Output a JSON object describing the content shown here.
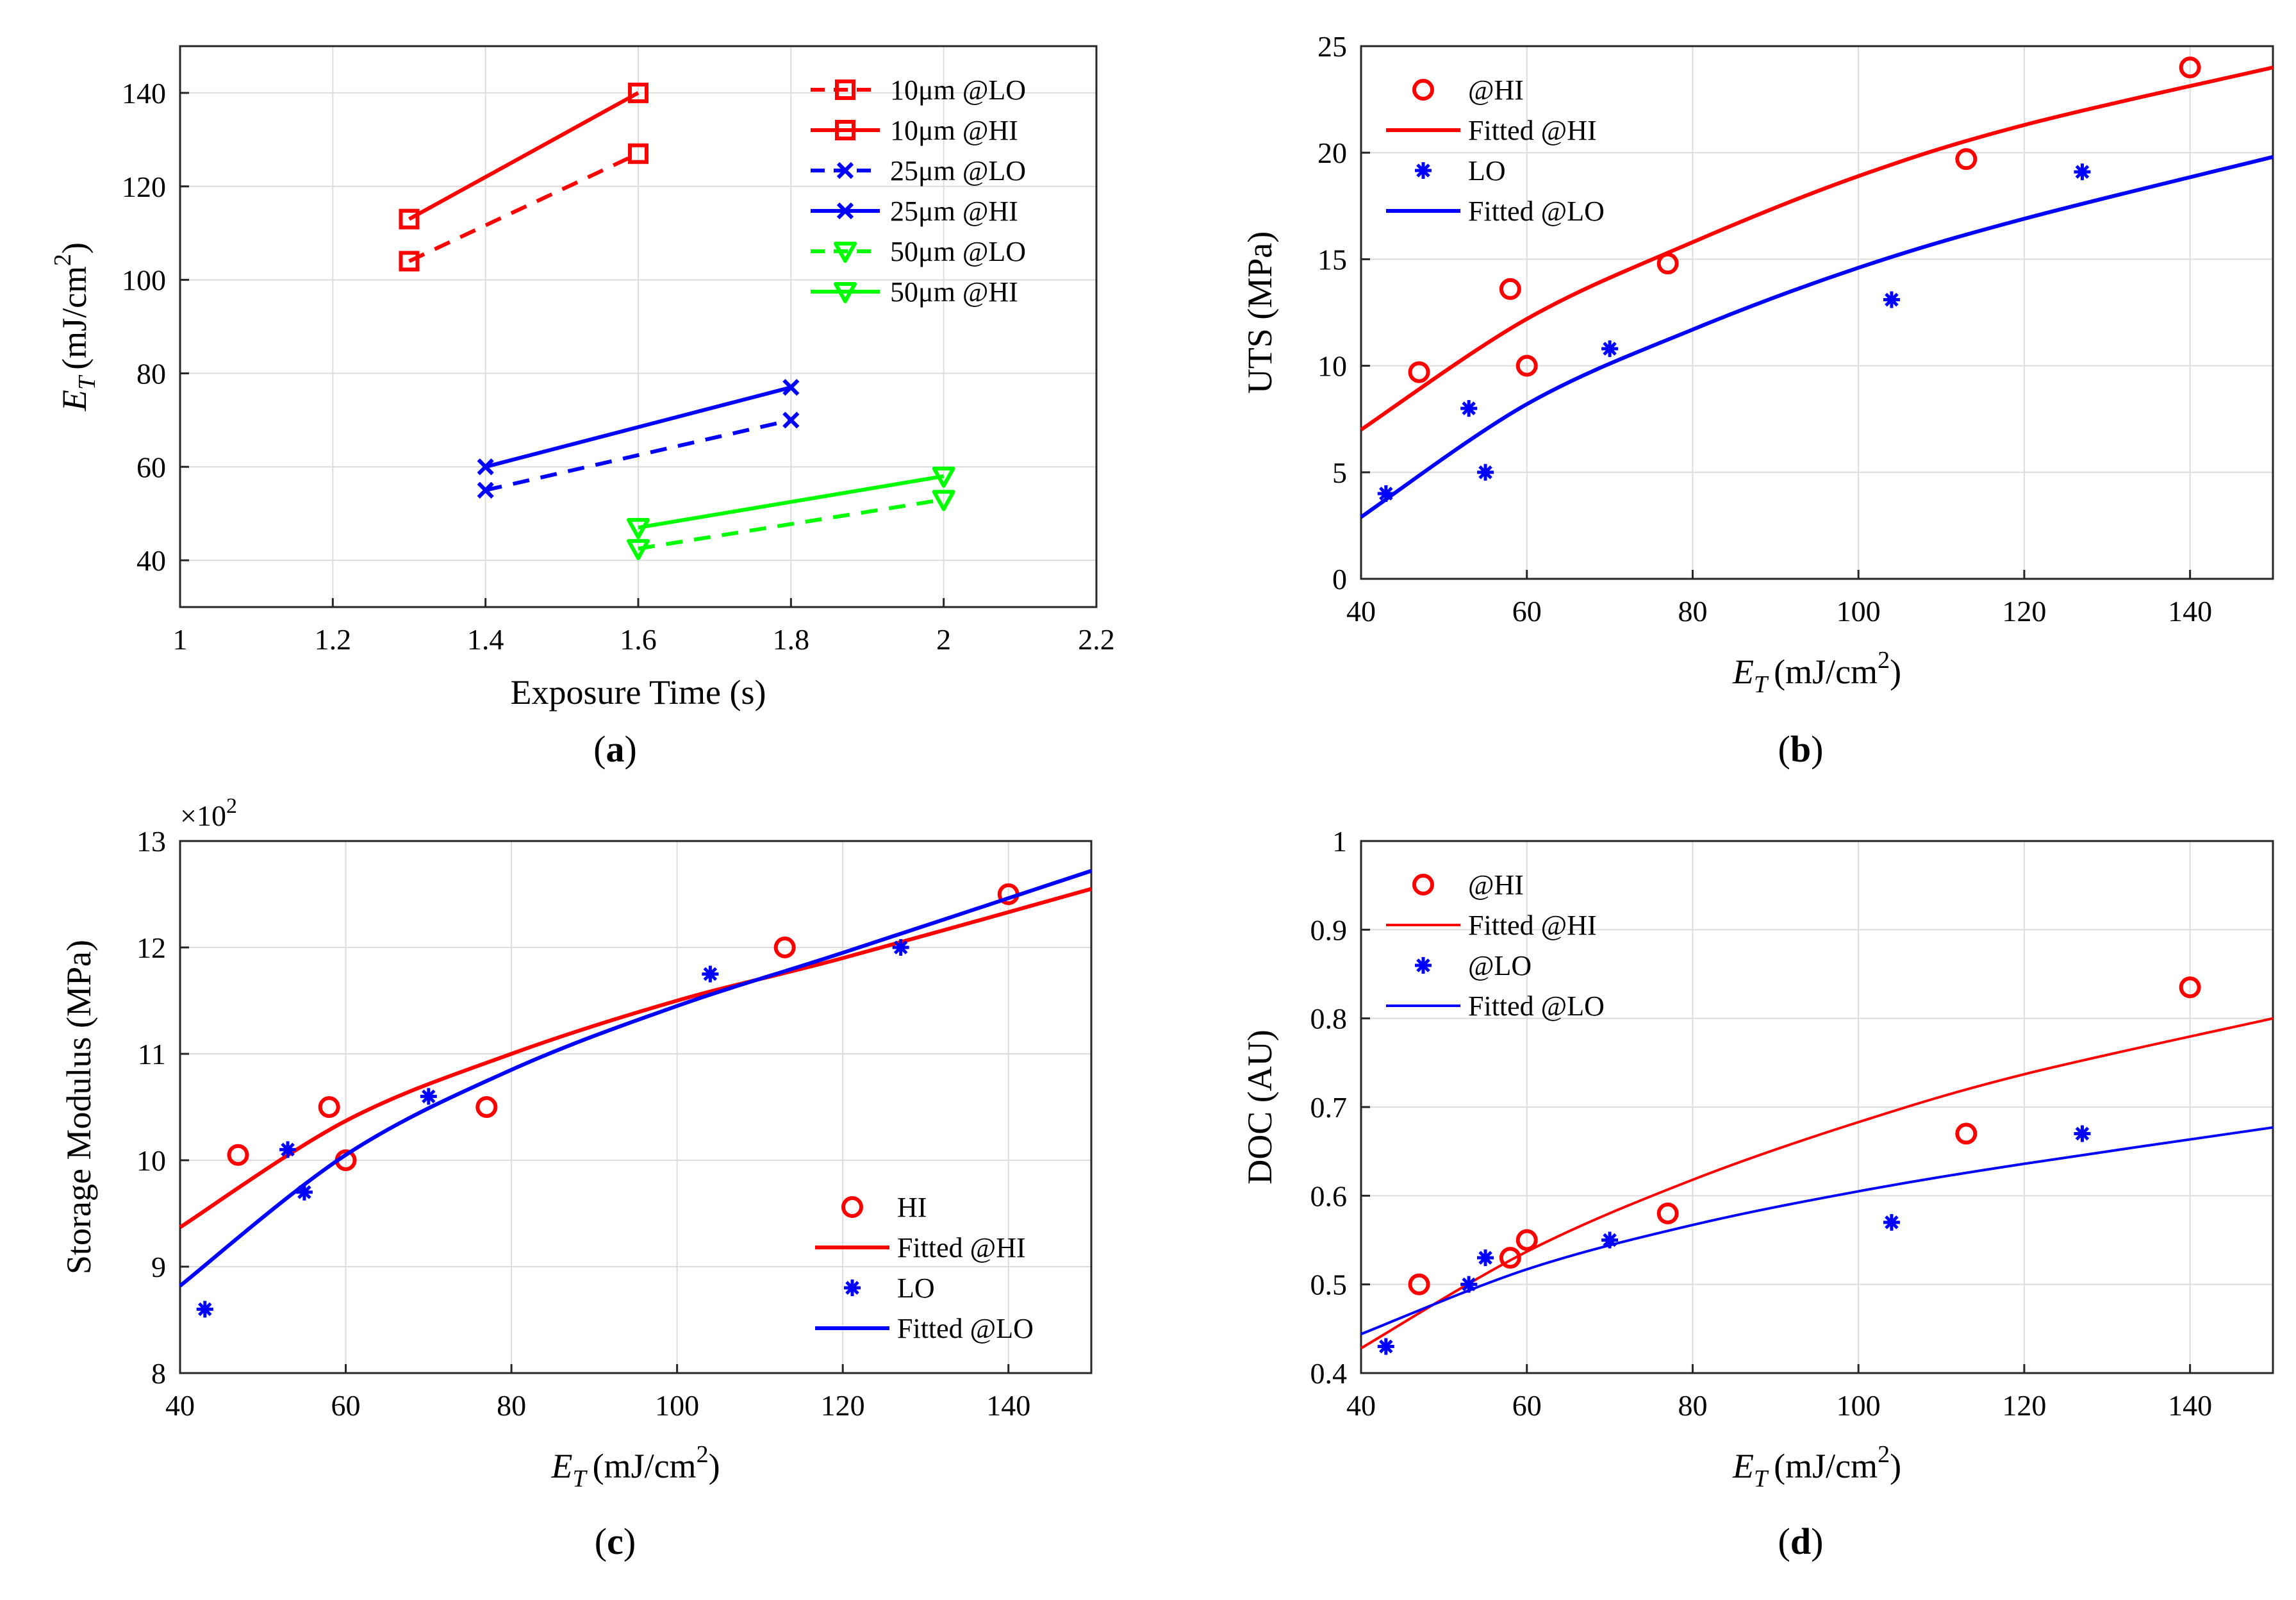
{
  "chart_data": [
    {
      "panel": "a",
      "type": "line",
      "caption": "a",
      "xlabel": "Exposure Time (s)",
      "ylabel": "E_T (mJ/cm^2)",
      "ylabel_parts": {
        "main": "E",
        "sub": "T",
        "unit": "(mJ/cm",
        "sup": "2",
        "close": ")"
      },
      "xlim": [
        1,
        2.2
      ],
      "ylim": [
        30,
        150
      ],
      "xticks": [
        1,
        1.2,
        1.4,
        1.6,
        1.8,
        2,
        2.2
      ],
      "xtick_labels": [
        "1",
        "1.2",
        "1.4",
        "1.6",
        "1.8",
        "2",
        "2.2"
      ],
      "yticks": [
        40,
        60,
        80,
        100,
        120,
        140
      ],
      "ytick_labels": [
        "40",
        "60",
        "80",
        "100",
        "120",
        "140"
      ],
      "legend_position": "top-right",
      "series": [
        {
          "name": "10μm @LO",
          "color": "#ff0000",
          "dash": true,
          "marker": "square",
          "x": [
            1.3,
            1.6
          ],
          "y": [
            104,
            127
          ]
        },
        {
          "name": "10μm @HI",
          "color": "#ff0000",
          "dash": false,
          "marker": "square",
          "x": [
            1.3,
            1.6
          ],
          "y": [
            113,
            140
          ]
        },
        {
          "name": "25μm @LO",
          "color": "#0000ff",
          "dash": true,
          "marker": "x",
          "x": [
            1.4,
            1.8
          ],
          "y": [
            55,
            70
          ]
        },
        {
          "name": "25μm @HI",
          "color": "#0000ff",
          "dash": false,
          "marker": "x",
          "x": [
            1.4,
            1.8
          ],
          "y": [
            60,
            77
          ]
        },
        {
          "name": "50μm @LO",
          "color": "#00ff00",
          "dash": true,
          "marker": "triangle",
          "x": [
            1.6,
            2.0
          ],
          "y": [
            42.5,
            53
          ]
        },
        {
          "name": "50μm @HI",
          "color": "#00ff00",
          "dash": false,
          "marker": "triangle",
          "x": [
            1.6,
            2.0
          ],
          "y": [
            47,
            58
          ]
        }
      ]
    },
    {
      "panel": "b",
      "type": "scatter",
      "caption": "b",
      "xlabel": "E_T (mJ/cm^2)",
      "xlabel_parts": {
        "main": "E",
        "sub": "T",
        "unit": "(mJ/cm",
        "sup": "2",
        "close": ")"
      },
      "ylabel": "UTS (MPa)",
      "xlim": [
        40,
        150
      ],
      "ylim": [
        0,
        25
      ],
      "xticks": [
        40,
        60,
        80,
        100,
        120,
        140
      ],
      "xtick_labels": [
        "40",
        "60",
        "80",
        "100",
        "120",
        "140"
      ],
      "yticks": [
        0,
        5,
        10,
        15,
        20,
        25
      ],
      "ytick_labels": [
        "0",
        "5",
        "10",
        "15",
        "20",
        "25"
      ],
      "legend_position": "top-left",
      "series": [
        {
          "name": "@HI",
          "kind": "points",
          "color": "#ff0000",
          "marker": "circle",
          "x": [
            47,
            58,
            60,
            77,
            113,
            140
          ],
          "y": [
            9.7,
            13.6,
            10,
            14.8,
            19.7,
            24
          ]
        },
        {
          "name": "Fitted @HI",
          "kind": "fit",
          "color": "#ff0000",
          "width": 6,
          "x": [
            40,
            60,
            80,
            100,
            120,
            150
          ],
          "y": [
            7,
            12.2,
            15.8,
            18.9,
            21.3,
            24
          ]
        },
        {
          "name": "LO",
          "kind": "points",
          "color": "#0000ff",
          "marker": "asterisk",
          "x": [
            43,
            53,
            55,
            70,
            104,
            127
          ],
          "y": [
            4,
            8,
            5,
            10.8,
            13.1,
            19.1
          ]
        },
        {
          "name": "Fitted @LO",
          "kind": "fit",
          "color": "#0000ff",
          "width": 6,
          "x": [
            40,
            60,
            80,
            100,
            120,
            150
          ],
          "y": [
            2.9,
            8.2,
            11.7,
            14.6,
            16.9,
            19.8
          ]
        }
      ]
    },
    {
      "panel": "c",
      "type": "scatter",
      "caption": "c",
      "xlabel": "E_T (mJ/cm^2)",
      "xlabel_parts": {
        "main": "E",
        "sub": "T",
        "unit": "(mJ/cm",
        "sup": "2",
        "close": ")"
      },
      "ylabel": "Storage Modulus (MPa)",
      "multiplier": {
        "base": "×10",
        "exp": "2"
      },
      "xlim": [
        40,
        150
      ],
      "ylim": [
        8,
        13
      ],
      "xticks": [
        40,
        60,
        80,
        100,
        120,
        140
      ],
      "xtick_labels": [
        "40",
        "60",
        "80",
        "100",
        "120",
        "140"
      ],
      "yticks": [
        8,
        9,
        10,
        11,
        12,
        13
      ],
      "ytick_labels": [
        "8",
        "9",
        "10",
        "11",
        "12",
        "13"
      ],
      "legend_position": "bottom-right",
      "series": [
        {
          "name": "HI",
          "kind": "points",
          "color": "#ff0000",
          "marker": "circle",
          "x": [
            47,
            58,
            60,
            77,
            113,
            140
          ],
          "y": [
            10.05,
            10.5,
            10,
            10.5,
            12,
            12.5
          ]
        },
        {
          "name": "Fitted @HI",
          "kind": "fit",
          "color": "#ff0000",
          "width": 6,
          "x": [
            40,
            60,
            80,
            100,
            120,
            150
          ],
          "y": [
            9.37,
            10.37,
            11.0,
            11.5,
            11.9,
            12.55
          ]
        },
        {
          "name": "LO",
          "kind": "points",
          "color": "#0000ff",
          "marker": "asterisk",
          "x": [
            43,
            53,
            55,
            70,
            104,
            127
          ],
          "y": [
            8.6,
            10.1,
            9.7,
            10.6,
            11.75,
            12.0
          ]
        },
        {
          "name": "Fitted @LO",
          "kind": "fit",
          "color": "#0000ff",
          "width": 6,
          "x": [
            40,
            60,
            80,
            100,
            120,
            150
          ],
          "y": [
            8.82,
            10.05,
            10.85,
            11.45,
            11.95,
            12.72
          ]
        }
      ]
    },
    {
      "panel": "d",
      "type": "scatter",
      "caption": "d",
      "xlabel": "E_T (mJ/cm^2)",
      "xlabel_parts": {
        "main": "E",
        "sub": "T",
        "unit": "(mJ/cm",
        "sup": "2",
        "close": ")"
      },
      "ylabel": "DOC (AU)",
      "xlim": [
        40,
        150
      ],
      "ylim": [
        0.4,
        1
      ],
      "xticks": [
        40,
        60,
        80,
        100,
        120,
        140
      ],
      "xtick_labels": [
        "40",
        "60",
        "80",
        "100",
        "120",
        "140"
      ],
      "yticks": [
        0.4,
        0.5,
        0.6,
        0.7,
        0.8,
        0.9,
        1
      ],
      "ytick_labels": [
        "0.4",
        "0.5",
        "0.6",
        "0.7",
        "0.8",
        "0.9",
        "1"
      ],
      "legend_position": "top-left",
      "series": [
        {
          "name": "@HI",
          "kind": "points",
          "color": "#ff0000",
          "marker": "circle",
          "x": [
            47,
            58,
            60,
            77,
            113,
            140
          ],
          "y": [
            0.5,
            0.53,
            0.55,
            0.58,
            0.67,
            0.835
          ]
        },
        {
          "name": "Fitted @HI",
          "kind": "fit",
          "color": "#ff0000",
          "width": 4,
          "x": [
            40,
            60,
            80,
            100,
            120,
            150
          ],
          "y": [
            0.428,
            0.537,
            0.618,
            0.683,
            0.737,
            0.8
          ]
        },
        {
          "name": "@LO",
          "kind": "points",
          "color": "#0000ff",
          "marker": "asterisk",
          "x": [
            43,
            53,
            55,
            70,
            104,
            127
          ],
          "y": [
            0.43,
            0.5,
            0.53,
            0.55,
            0.57,
            0.67
          ]
        },
        {
          "name": "Fitted @LO",
          "kind": "fit",
          "color": "#0000ff",
          "width": 4,
          "x": [
            40,
            60,
            80,
            100,
            120,
            150
          ],
          "y": [
            0.444,
            0.517,
            0.567,
            0.605,
            0.636,
            0.677
          ]
        }
      ]
    }
  ]
}
